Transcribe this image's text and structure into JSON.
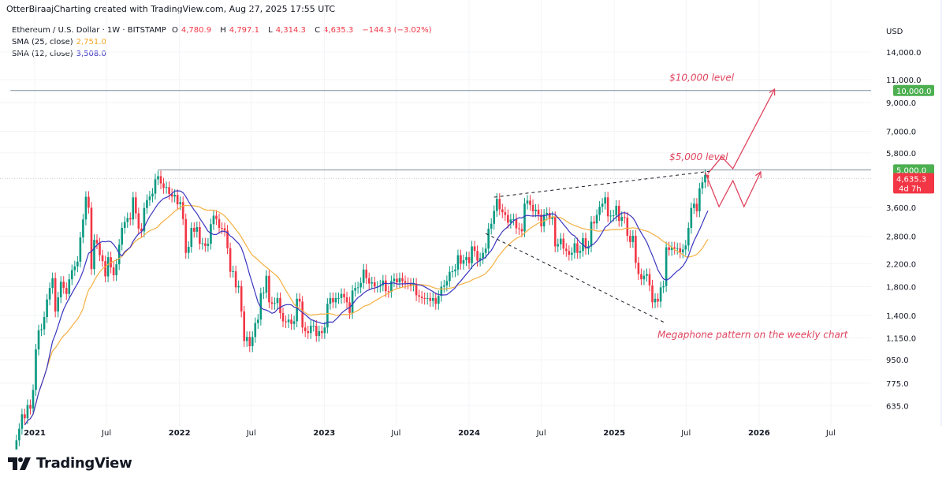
{
  "header": {
    "credit": "OtterBiraajCharting created with TradingView.com, Aug 27, 2025 17:55 UTC",
    "symbol": "Ethereum / U.S. Dollar · 1W · BITSTAMP",
    "open_label": "O",
    "open": "4,780.9",
    "high_label": "H",
    "high": "4,797.1",
    "low_label": "L",
    "low": "4,314.3",
    "close_label": "C",
    "close": "4,635.3",
    "change": "−144.3 (−3.02%)",
    "sma25_label": "SMA (25, close)",
    "sma25_value": "2,751.0",
    "sma12_label": "SMA (12, close)",
    "sma12_value": "3,508.0"
  },
  "logo": {
    "text": "TradingView"
  },
  "chart_data": {
    "type": "candlestick",
    "scale": "log",
    "currency_label": "USD",
    "y_ticks": [
      "14,000.0",
      "11,000.0",
      "9,000.0",
      "7,000.0",
      "5,800.0",
      "3,600.0",
      "2,800.0",
      "2,200.0",
      "1,800.0",
      "1,400.0",
      "1,150.0",
      "950.0",
      "775.0",
      "635.0"
    ],
    "y_tick_values": [
      14000,
      11000,
      9000,
      7000,
      5800,
      3600,
      2800,
      2200,
      1800,
      1400,
      1150,
      950,
      775,
      635
    ],
    "x_ticks": [
      {
        "label": "2021",
        "date": "2021-01-01",
        "bold": true
      },
      {
        "label": "Jul",
        "date": "2021-07-01"
      },
      {
        "label": "2022",
        "date": "2022-01-01",
        "bold": true
      },
      {
        "label": "Jul",
        "date": "2022-07-01"
      },
      {
        "label": "2023",
        "date": "2023-01-01",
        "bold": true
      },
      {
        "label": "Jul",
        "date": "2023-07-01"
      },
      {
        "label": "2024",
        "date": "2024-01-01",
        "bold": true
      },
      {
        "label": "Jul",
        "date": "2024-07-01"
      },
      {
        "label": "2025",
        "date": "2025-01-01",
        "bold": true
      },
      {
        "label": "Jul",
        "date": "2025-07-01"
      },
      {
        "label": "2026",
        "date": "2026-01-01",
        "bold": true
      },
      {
        "label": "Jul",
        "date": "2026-07-01"
      }
    ],
    "price_labels": [
      {
        "text": "10,000.0",
        "value": 10000,
        "color": "#4caf50"
      },
      {
        "text": "5,000.0",
        "value": 5000,
        "color": "#4caf50"
      },
      {
        "text": "4,635.3",
        "sub": "4d 7h",
        "value": 4635.3,
        "color": "#f23645"
      }
    ],
    "colors": {
      "up": "#089981",
      "down": "#f23645",
      "sma25": "#f5b041",
      "sma12": "#3a35c0",
      "annotation": "#e0455f",
      "level_line": "#7a8a99"
    },
    "weekly_closes_by_month": {
      "2020-11": [
        470,
        520,
        590
      ],
      "2020-12": [
        570,
        640,
        620,
        730
      ],
      "2021-01": [
        1040,
        1230,
        1240,
        1380
      ],
      "2021-02": [
        1610,
        1780,
        1940,
        1450
      ],
      "2021-03": [
        1640,
        1880,
        1780,
        1690,
        1920
      ],
      "2021-04": [
        2080,
        2150,
        2240,
        2770
      ],
      "2021-05": [
        3240,
        3950,
        3590,
        2100,
        2710
      ],
      "2021-06": [
        2630,
        2370,
        2250,
        1970
      ],
      "2021-07": [
        2330,
        2130,
        1990,
        2190
      ],
      "2021-08": [
        2600,
        3010,
        3170,
        3280,
        3240
      ],
      "2021-09": [
        3930,
        3420,
        2990,
        2920
      ],
      "2021-10": [
        3580,
        3840,
        3960,
        4060
      ],
      "2021-11": [
        4600,
        4730,
        4440,
        4270,
        4300
      ],
      "2021-12": [
        4050,
        3960,
        4020,
        3700
      ],
      "2022-01": [
        3770,
        3250,
        2420,
        2550,
        3010
      ],
      "2022-02": [
        2910,
        3030,
        2620,
        2630
      ],
      "2022-03": [
        2570,
        2620,
        3110,
        3350
      ],
      "2022-04": [
        3250,
        3010,
        3000,
        2940
      ],
      "2022-05": [
        2520,
        2050,
        2060,
        1790,
        1810
      ],
      "2022-06": [
        1450,
        1120,
        1160,
        1070
      ],
      "2022-07": [
        1160,
        1310,
        1350,
        1700
      ],
      "2022-08": [
        1710,
        1980,
        1570,
        1550,
        1560
      ],
      "2022-09": [
        1630,
        1430,
        1330,
        1320
      ],
      "2022-10": [
        1350,
        1300,
        1330,
        1620,
        1580
      ],
      "2022-11": [
        1260,
        1220,
        1200,
        1280
      ],
      "2022-12": [
        1280,
        1170,
        1220,
        1200
      ],
      "2023-01": [
        1260,
        1550,
        1630,
        1570,
        1630
      ],
      "2023-02": [
        1630,
        1690,
        1640,
        1570
      ],
      "2023-03": [
        1430,
        1740,
        1780,
        1790
      ],
      "2023-04": [
        1860,
        2090,
        1940,
        1850,
        1870
      ],
      "2023-05": [
        1800,
        1800,
        1820,
        1900
      ],
      "2023-06": [
        1730,
        1720,
        1890,
        1930
      ],
      "2023-07": [
        1870,
        1940,
        1890,
        1860,
        1850
      ],
      "2023-08": [
        1820,
        1850,
        1670,
        1650
      ],
      "2023-09": [
        1630,
        1620,
        1630,
        1590
      ],
      "2023-10": [
        1630,
        1550,
        1660,
        1800,
        1820
      ],
      "2023-11": [
        1890,
        2050,
        2060,
        2090
      ],
      "2023-12": [
        2370,
        2200,
        2270,
        2330
      ],
      "2024-01": [
        2210,
        2560,
        2460,
        2260,
        2310
      ],
      "2024-02": [
        2420,
        2510,
        2990,
        3120
      ],
      "2024-03": [
        3490,
        3880,
        3540,
        3450
      ],
      "2024-04": [
        3370,
        3150,
        3240,
        3250,
        3000
      ],
      "2024-05": [
        2980,
        2920,
        3720,
        3820
      ],
      "2024-06": [
        3680,
        3480,
        3530,
        3380
      ],
      "2024-07": [
        3050,
        3380,
        3430,
        3250,
        3310
      ],
      "2024-08": [
        2560,
        2610,
        2740,
        2510
      ],
      "2024-09": [
        2460,
        2380,
        2420,
        2630
      ],
      "2024-10": [
        2420,
        2460,
        2750,
        2510,
        2560
      ],
      "2024-11": [
        3180,
        3130,
        3370,
        3620
      ],
      "2024-12": [
        3720,
        3930,
        3330,
        3350,
        3360
      ],
      "2025-01": [
        3650,
        3200,
        3310,
        3290
      ],
      "2025-02": [
        2810,
        2660,
        2810,
        2220
      ],
      "2025-03": [
        2010,
        1920,
        1980,
        2010,
        1820
      ],
      "2025-04": [
        1570,
        1620,
        1580,
        1790
      ],
      "2025-05": [
        1810,
        2540,
        2480,
        2540
      ],
      "2025-06": [
        2510,
        2520,
        2430,
        2490,
        2580
      ],
      "2025-07": [
        3010,
        3580,
        3720,
        3480
      ],
      "2025-08": [
        4250,
        4480,
        4780.9,
        4635.3
      ]
    },
    "last_candle": {
      "open": 4780.9,
      "high": 4797.1,
      "low": 4314.3,
      "close": 4635.3
    },
    "indicators": [
      {
        "name": "SMA (25, close)",
        "period": 25,
        "last": 2751.0
      },
      {
        "name": "SMA (12, close)",
        "period": 12,
        "last": 3508.0
      }
    ],
    "levels": [
      {
        "value": 10000,
        "from": "2020-11-01"
      },
      {
        "value": 5000,
        "from": "2021-11-08"
      }
    ],
    "trendlines": [
      {
        "name": "megaphone-upper",
        "points": [
          [
            "2024-03-04",
            3936
          ],
          [
            "2025-09-01",
            4943
          ]
        ],
        "dashed": true
      },
      {
        "name": "megaphone-lower",
        "points": [
          [
            "2024-02-12",
            2865
          ],
          [
            "2025-05-12",
            1306
          ]
        ],
        "dashed": true
      }
    ],
    "projections": [
      {
        "name": "projection-to-10000",
        "points": [
          [
            "2025-08-25",
            4840
          ],
          [
            "2025-09-29",
            5600
          ],
          [
            "2025-10-27",
            5050
          ],
          [
            "2026-02-09",
            10120
          ]
        ]
      },
      {
        "name": "projection-retest",
        "points": [
          [
            "2025-08-18",
            4900
          ],
          [
            "2025-09-22",
            3622
          ],
          [
            "2025-10-27",
            4550
          ],
          [
            "2025-11-24",
            3622
          ],
          [
            "2026-01-05",
            4910
          ]
        ]
      }
    ],
    "annotations": [
      {
        "text": "$10,000 level",
        "date": "2025-05-20",
        "value": 10900
      },
      {
        "text": "$5,000 level",
        "date": "2025-05-20",
        "value": 5450
      },
      {
        "text": "Megaphone pattern on the weekly chart",
        "date": "2025-04-20",
        "value": 1150
      }
    ]
  }
}
